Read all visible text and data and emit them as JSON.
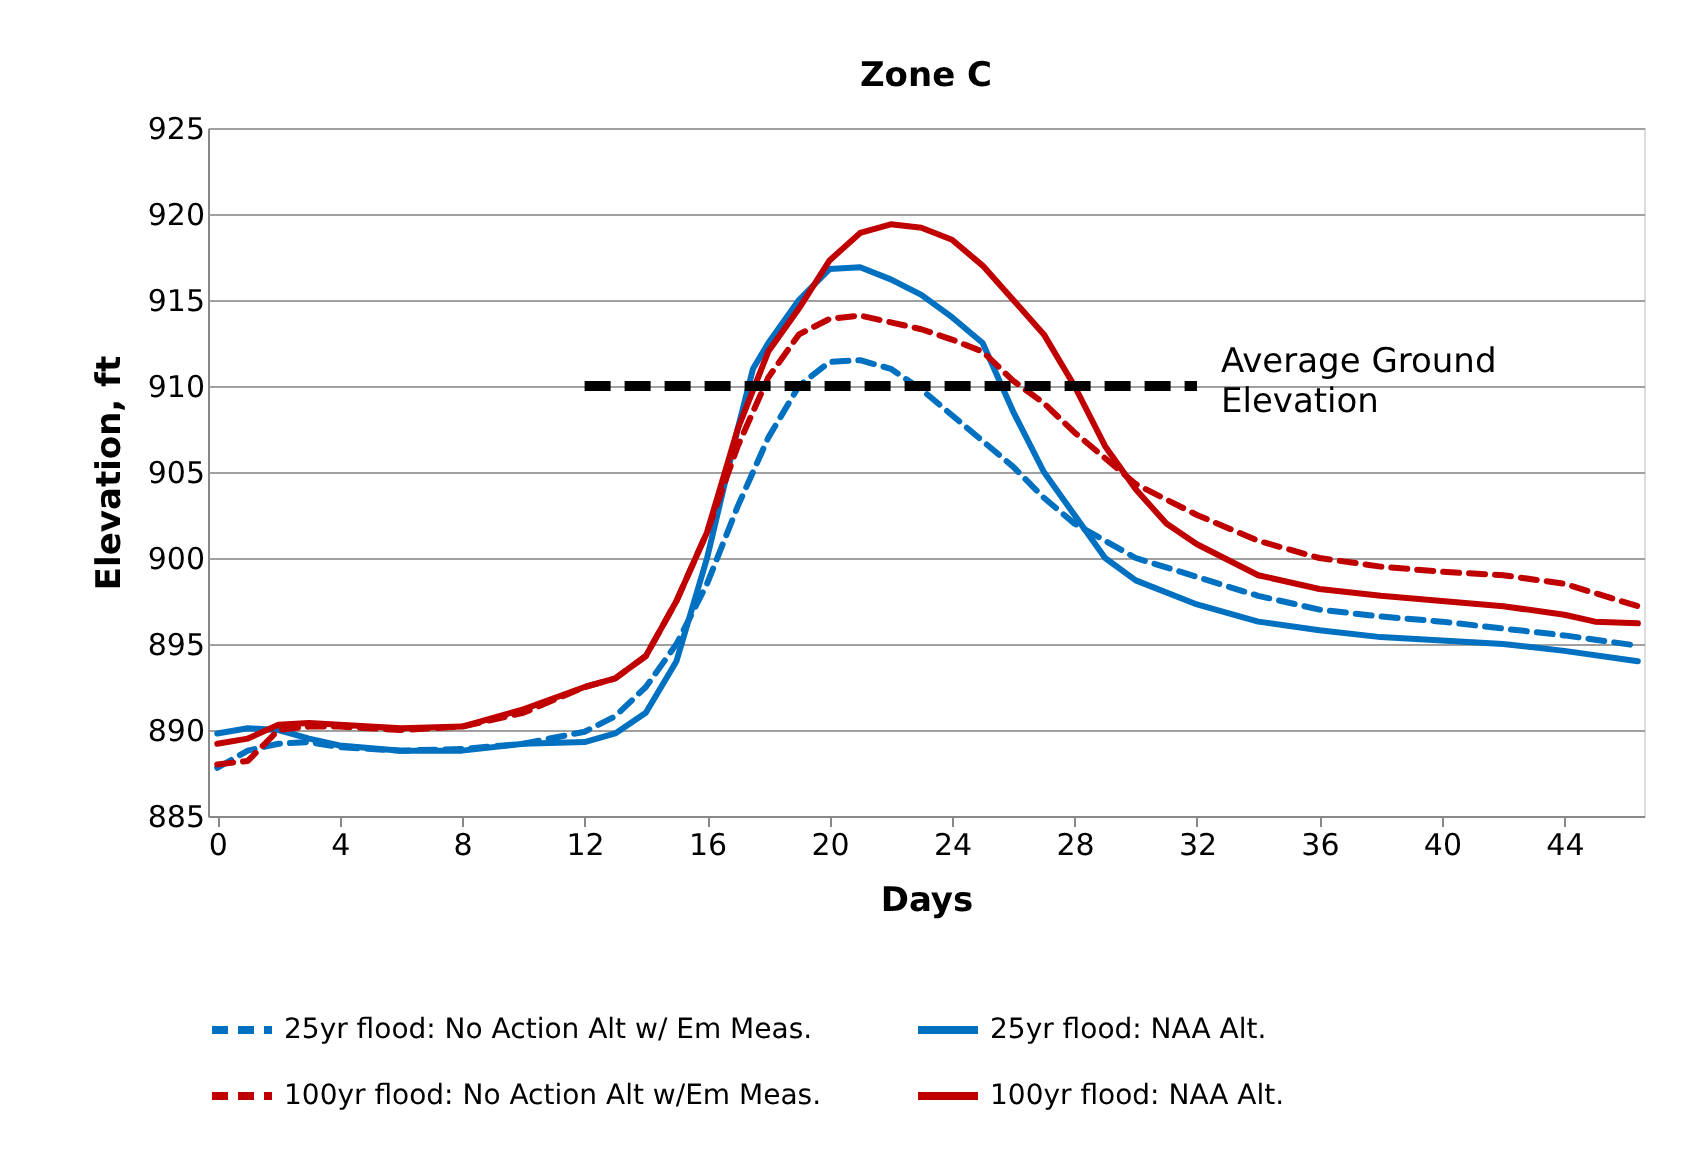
{
  "chart_data": {
    "type": "line",
    "title": "Zone C",
    "xlabel": "Days",
    "ylabel": "Elevation, ft",
    "xlim": [
      -0.3,
      46.6
    ],
    "xticks": [
      0,
      4,
      8,
      12,
      16,
      20,
      24,
      28,
      32,
      36,
      40,
      44
    ],
    "ylim": [
      885,
      925
    ],
    "yticks": [
      885,
      890,
      895,
      900,
      905,
      910,
      915,
      920,
      925
    ],
    "grid": "y",
    "legend": "bottom",
    "series": [
      {
        "name": "25yr flood: No Action Alt w/ Em Meas.",
        "color": "#0070c0",
        "line_style": "dashed",
        "x": [
          0,
          1,
          2,
          3,
          4,
          6,
          8,
          10,
          12,
          13,
          14,
          15,
          16,
          17,
          18,
          19,
          20,
          21,
          22,
          23,
          24,
          25,
          26,
          27,
          28,
          30,
          32,
          34,
          36,
          38,
          40,
          42,
          44,
          46.4
        ],
        "values": [
          887.8,
          888.8,
          889.2,
          889.3,
          889.0,
          888.8,
          888.9,
          889.2,
          889.9,
          890.8,
          892.5,
          895,
          898.5,
          903,
          907,
          910,
          911.4,
          911.5,
          911,
          909.8,
          908.3,
          906.8,
          905.3,
          903.5,
          902,
          900,
          898.9,
          897.8,
          897,
          896.6,
          896.3,
          895.9,
          895.5,
          894.9
        ]
      },
      {
        "name": "25yr flood: NAA Alt.",
        "color": "#0070c0",
        "line_style": "solid",
        "x": [
          0,
          1,
          2,
          3,
          4,
          6,
          8,
          10,
          12,
          13,
          14,
          15,
          16,
          17,
          17.5,
          18,
          19,
          20,
          21,
          22,
          23,
          24,
          25,
          26,
          27,
          28,
          29,
          30,
          32,
          34,
          36,
          38,
          40,
          42,
          44,
          46.4
        ],
        "values": [
          889.8,
          890.1,
          890,
          889.5,
          889.1,
          888.8,
          888.8,
          889.2,
          889.3,
          889.8,
          891,
          894,
          900,
          907.5,
          911,
          912.5,
          915,
          916.8,
          916.9,
          916.2,
          915.3,
          914,
          912.5,
          908.5,
          905,
          902.5,
          900,
          898.7,
          897.3,
          896.3,
          895.8,
          895.4,
          895.2,
          895,
          894.6,
          894.0
        ]
      },
      {
        "name": "100yr flood: No Action Alt w/Em Meas.",
        "color": "#c00000",
        "line_style": "dashed",
        "x": [
          0,
          1,
          2,
          3,
          4,
          6,
          8,
          10,
          12,
          13,
          14,
          15,
          16,
          17,
          18,
          19,
          20,
          21,
          22,
          23,
          24,
          25,
          26,
          27,
          28,
          29,
          30,
          32,
          34,
          36,
          38,
          40,
          42,
          44,
          46.4
        ],
        "values": [
          888,
          888.2,
          890,
          890.2,
          890.2,
          890,
          890.2,
          891,
          892.5,
          893,
          894.3,
          897.5,
          901.5,
          906.5,
          910.5,
          913,
          913.9,
          914.1,
          913.7,
          913.3,
          912.7,
          912,
          910.3,
          909,
          907.3,
          905.8,
          904.3,
          902.5,
          901,
          900,
          899.5,
          899.2,
          899,
          898.5,
          897.2
        ]
      },
      {
        "name": "100yr flood: NAA Alt.",
        "color": "#c00000",
        "line_style": "solid",
        "x": [
          0,
          1,
          2,
          3,
          4,
          6,
          8,
          10,
          12,
          13,
          14,
          15,
          16,
          17,
          18,
          19,
          20,
          21,
          22,
          23,
          24,
          25,
          26,
          27,
          28,
          29,
          30,
          31,
          32,
          34,
          36,
          38,
          40,
          42,
          44,
          45,
          46.4
        ],
        "values": [
          889.2,
          889.5,
          890.3,
          890.4,
          890.3,
          890.1,
          890.2,
          891.2,
          892.5,
          893,
          894.3,
          897.5,
          901.5,
          907.5,
          912,
          914.5,
          917.3,
          918.9,
          919.4,
          919.2,
          918.5,
          917,
          915,
          913,
          910,
          906.5,
          904,
          902,
          900.8,
          899,
          898.2,
          897.8,
          897.5,
          897.2,
          896.7,
          896.3,
          896.2
        ]
      },
      {
        "name": "Average Ground Elevation",
        "type": "line",
        "color": "#000000",
        "line_style": "dashed",
        "x": [
          12,
          32
        ],
        "values": [
          910,
          910
        ]
      }
    ]
  }
}
